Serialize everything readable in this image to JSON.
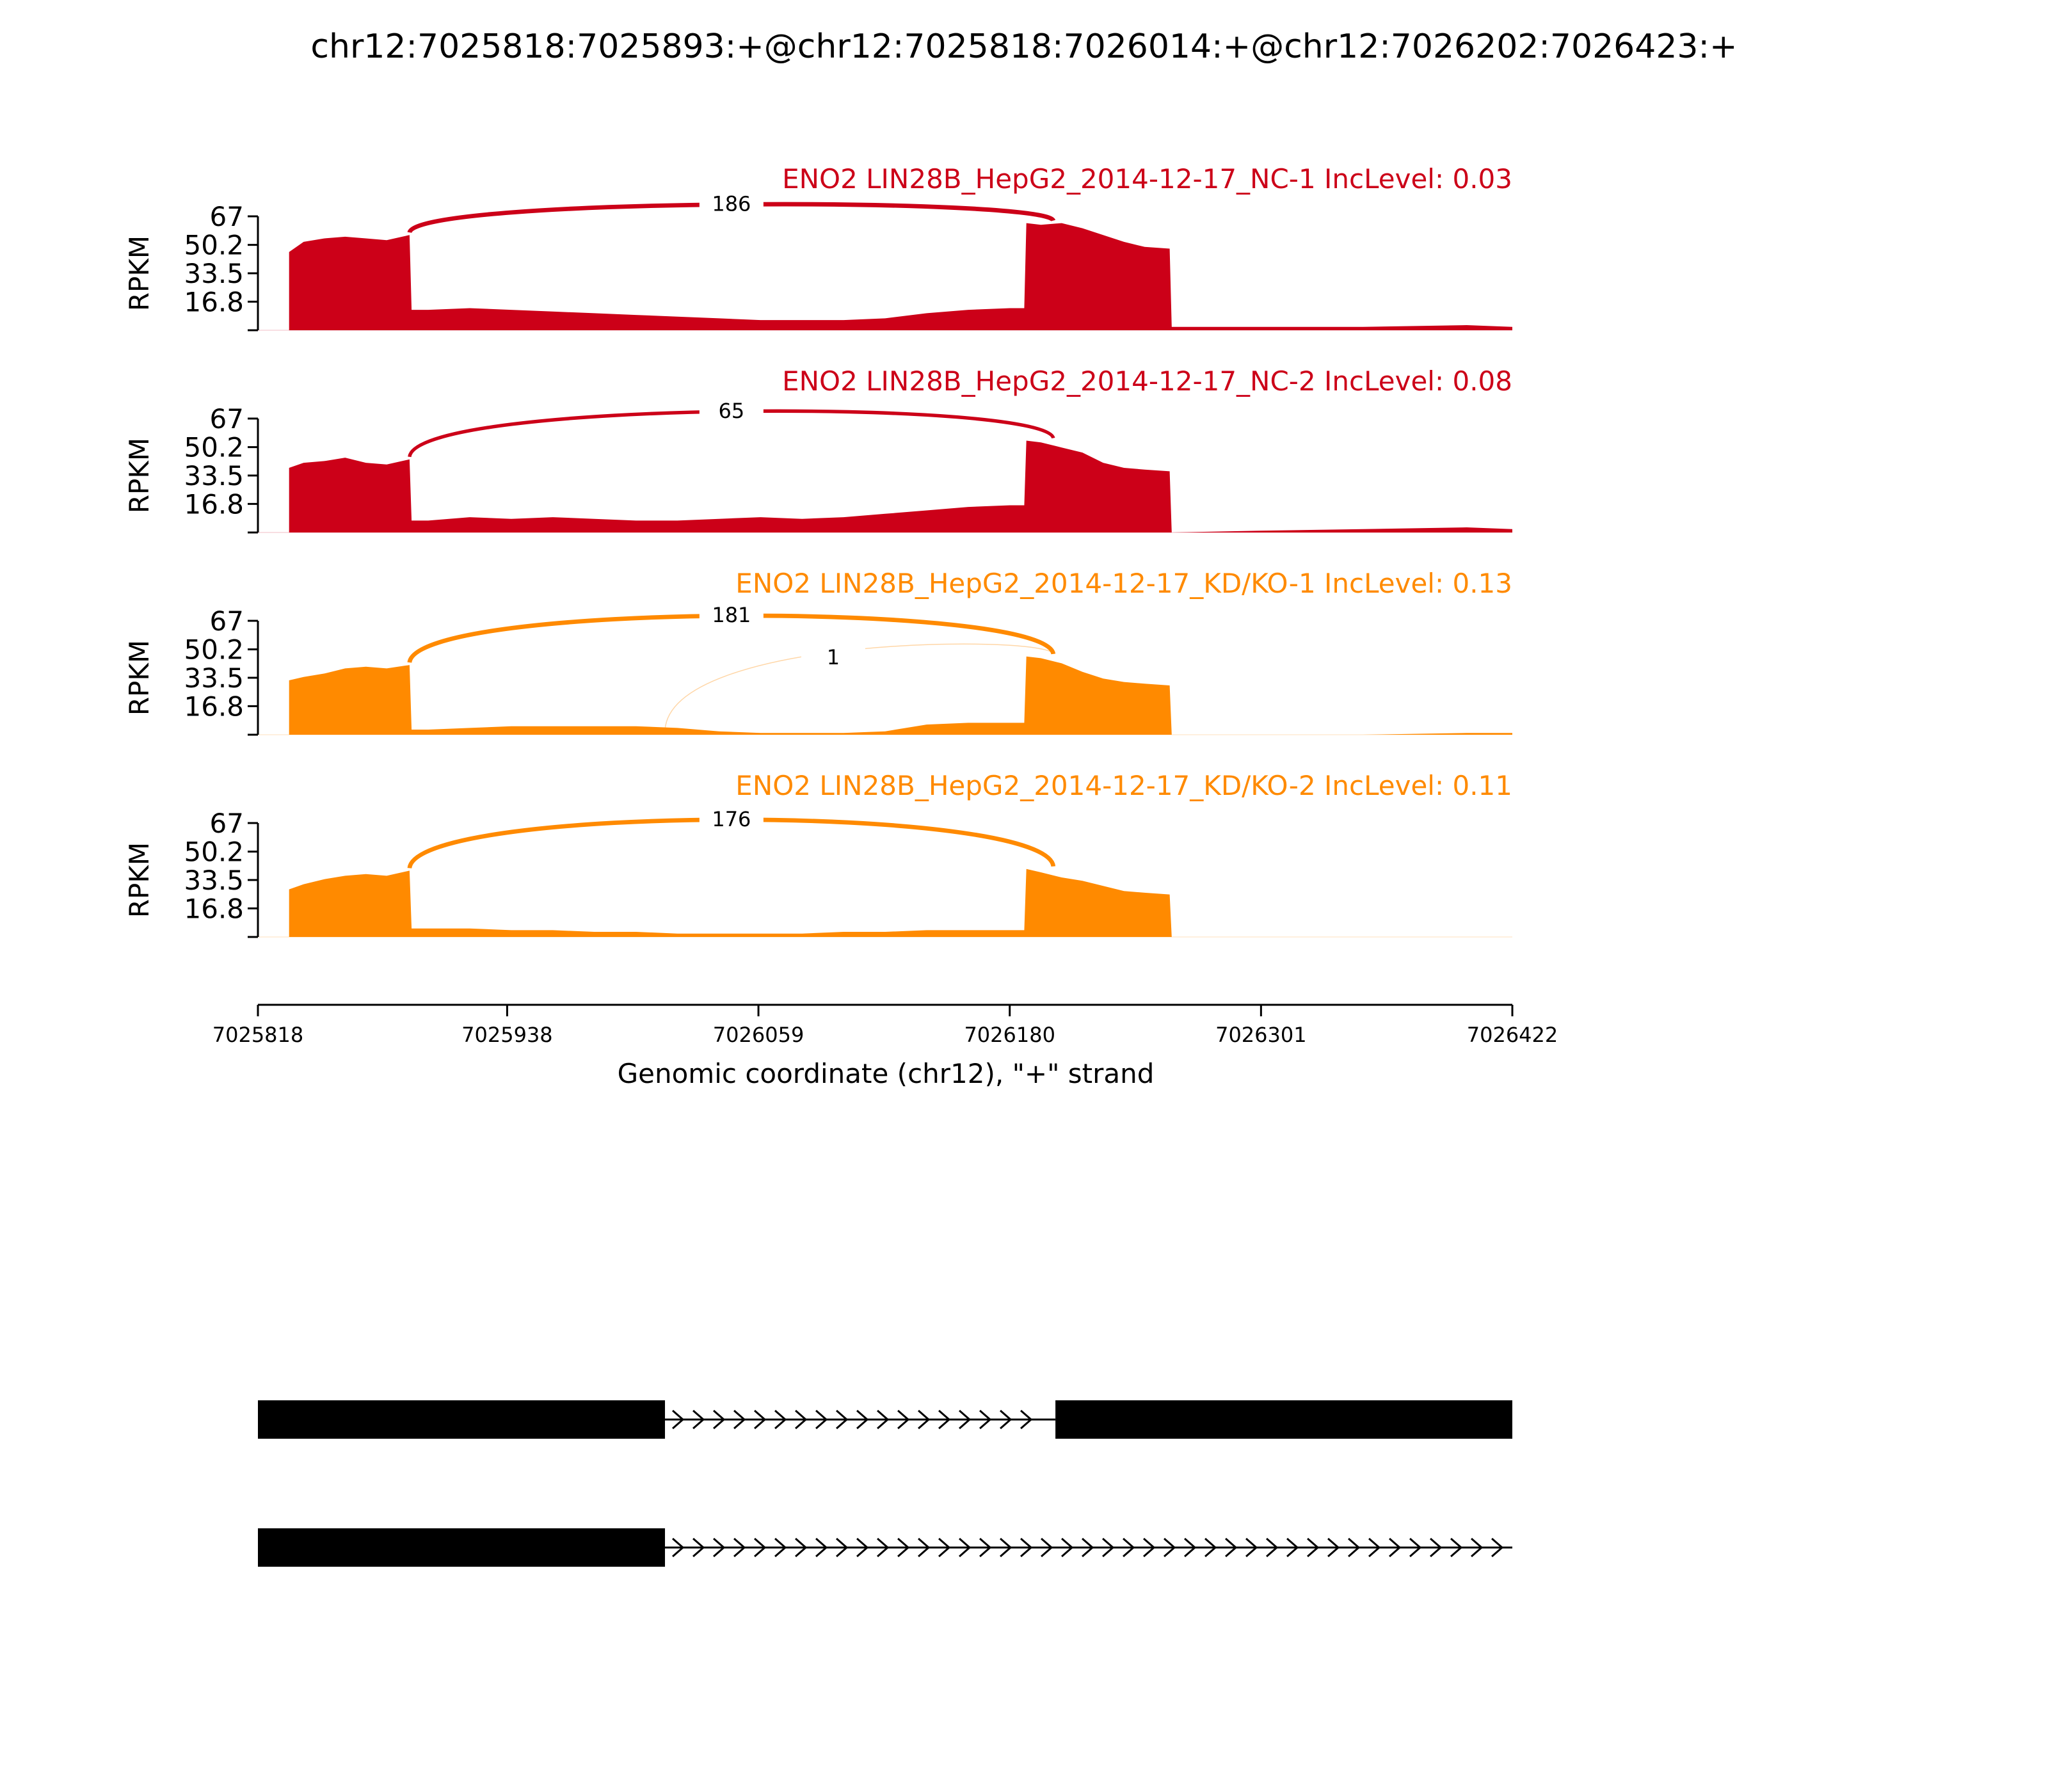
{
  "title": "chr12:7025818:7025893:+@chr12:7025818:7026014:+@chr12:7026202:7026423:+",
  "colors": {
    "nc": "#cc0018",
    "kd": "#ff8a00",
    "axis": "#000000",
    "gene": "#000000"
  },
  "chart_data": {
    "type": "area",
    "xlabel": "Genomic coordinate (chr12), \"+\" strand",
    "ylabel": "RPKM",
    "xlim": [
      7025818,
      7026422
    ],
    "xticks": [
      "7025818",
      "7025938",
      "7026059",
      "7026180",
      "7026301",
      "7026422"
    ],
    "ylim": [
      0,
      67
    ],
    "yticks": [
      "67",
      "50.2",
      "33.5",
      "16.8"
    ],
    "tracks": [
      {
        "label": "ENO2 LIN28B_HepG2_2014-12-17_NC-1 IncLevel: 0.03",
        "group": "nc",
        "x": [
          7025833,
          7025840,
          7025850,
          7025860,
          7025870,
          7025880,
          7025891,
          7025892,
          7025900,
          7025920,
          7025940,
          7025960,
          7025980,
          7026000,
          7026020,
          7026040,
          7026060,
          7026080,
          7026100,
          7026120,
          7026140,
          7026160,
          7026180,
          7026187,
          7026188,
          7026195,
          7026205,
          7026215,
          7026225,
          7026235,
          7026245,
          7026257,
          7026258,
          7026300,
          7026350,
          7026400,
          7026422
        ],
        "y": [
          46,
          52,
          54,
          55,
          54,
          53,
          56,
          12,
          12,
          13,
          12,
          11,
          10,
          9,
          8,
          7,
          6,
          6,
          6,
          7,
          10,
          12,
          13,
          13,
          63,
          62,
          63,
          60,
          56,
          52,
          49,
          48,
          2,
          2,
          2,
          3,
          2
        ],
        "junctions": [
          {
            "from": 7025891,
            "to": 7026201,
            "count": "186"
          }
        ]
      },
      {
        "label": "ENO2 LIN28B_HepG2_2014-12-17_NC-2 IncLevel: 0.08",
        "group": "nc",
        "x": [
          7025833,
          7025840,
          7025850,
          7025860,
          7025870,
          7025880,
          7025891,
          7025892,
          7025900,
          7025920,
          7025940,
          7025960,
          7025980,
          7026000,
          7026020,
          7026040,
          7026060,
          7026080,
          7026100,
          7026120,
          7026140,
          7026160,
          7026180,
          7026187,
          7026188,
          7026195,
          7026205,
          7026215,
          7026225,
          7026235,
          7026245,
          7026257,
          7026258,
          7026300,
          7026350,
          7026400,
          7026422
        ],
        "y": [
          38,
          41,
          42,
          44,
          41,
          40,
          43,
          7,
          7,
          9,
          8,
          9,
          8,
          7,
          7,
          8,
          9,
          8,
          9,
          11,
          13,
          15,
          16,
          16,
          54,
          53,
          50,
          47,
          41,
          38,
          37,
          36,
          0,
          1,
          2,
          3,
          2
        ],
        "junctions": [
          {
            "from": 7025891,
            "to": 7026201,
            "count": "65"
          }
        ]
      },
      {
        "label": "ENO2 LIN28B_HepG2_2014-12-17_KD/KO-1 IncLevel: 0.13",
        "group": "kd",
        "x": [
          7025833,
          7025840,
          7025850,
          7025860,
          7025870,
          7025880,
          7025891,
          7025892,
          7025900,
          7025920,
          7025940,
          7025960,
          7025980,
          7026000,
          7026020,
          7026040,
          7026060,
          7026080,
          7026100,
          7026120,
          7026140,
          7026160,
          7026180,
          7026187,
          7026188,
          7026195,
          7026205,
          7026215,
          7026225,
          7026235,
          7026245,
          7026257,
          7026258,
          7026300,
          7026350,
          7026400,
          7026422
        ],
        "y": [
          32,
          34,
          36,
          39,
          40,
          39,
          41,
          3,
          3,
          4,
          5,
          5,
          5,
          5,
          4,
          2,
          1,
          1,
          1,
          2,
          6,
          7,
          7,
          7,
          46,
          45,
          42,
          37,
          33,
          31,
          30,
          29,
          0,
          0,
          0,
          1,
          1
        ],
        "junctions": [
          {
            "from": 7025891,
            "to": 7026201,
            "count": "181"
          },
          {
            "from": 7026014,
            "to": 7026201,
            "count": "1"
          }
        ]
      },
      {
        "label": "ENO2 LIN28B_HepG2_2014-12-17_KD/KO-2 IncLevel: 0.11",
        "group": "kd",
        "x": [
          7025833,
          7025840,
          7025850,
          7025860,
          7025870,
          7025880,
          7025891,
          7025892,
          7025900,
          7025920,
          7025940,
          7025960,
          7025980,
          7026000,
          7026020,
          7026040,
          7026060,
          7026080,
          7026100,
          7026120,
          7026140,
          7026160,
          7026180,
          7026187,
          7026188,
          7026195,
          7026205,
          7026215,
          7026225,
          7026235,
          7026245,
          7026257,
          7026258,
          7026300,
          7026350,
          7026400,
          7026422
        ],
        "y": [
          28,
          31,
          34,
          36,
          37,
          36,
          39,
          5,
          5,
          5,
          4,
          4,
          3,
          3,
          2,
          2,
          2,
          2,
          3,
          3,
          4,
          4,
          4,
          4,
          40,
          38,
          35,
          33,
          30,
          27,
          26,
          25,
          0,
          0,
          0,
          0,
          0
        ],
        "junctions": [
          {
            "from": 7025891,
            "to": 7026201,
            "count": "176"
          }
        ]
      }
    ],
    "isoforms": [
      {
        "exons": [
          [
            7025818,
            7026014
          ],
          [
            7026202,
            7026422
          ]
        ],
        "intron": [
          7026014,
          7026202
        ]
      },
      {
        "exons": [
          [
            7025818,
            7026014
          ]
        ],
        "intron": [
          7026014,
          7026422
        ]
      }
    ]
  }
}
